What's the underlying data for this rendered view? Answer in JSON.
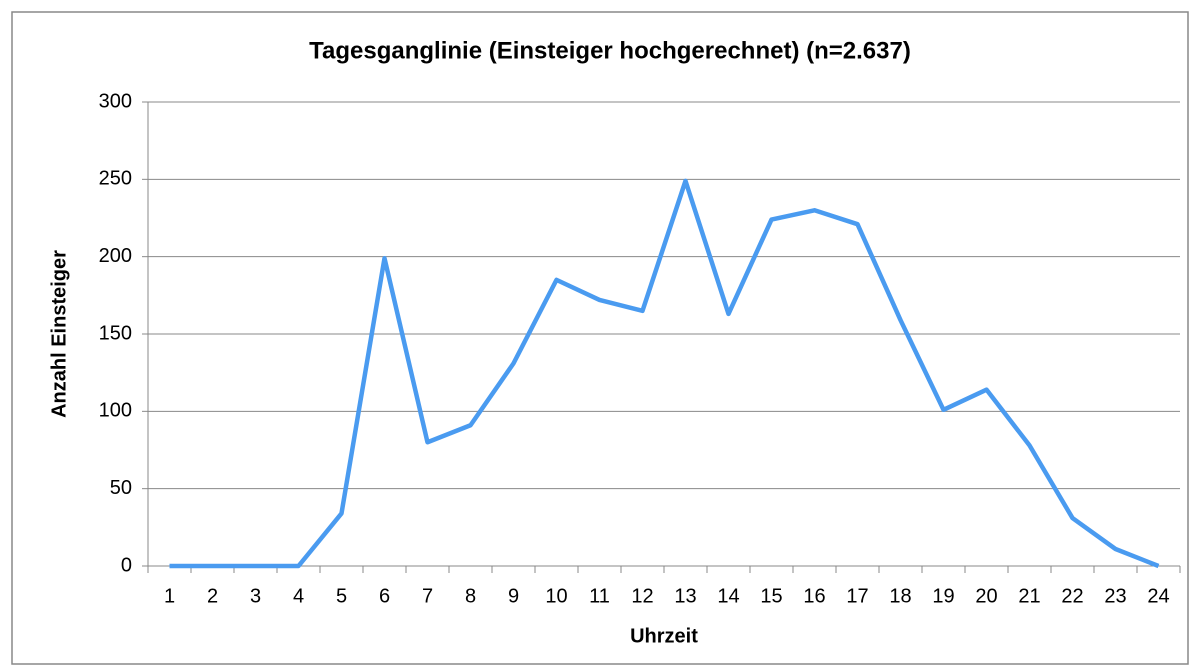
{
  "chart_data": {
    "type": "line",
    "title": "Tagesganglinie (Einsteiger hochgerechnet) (n=2.637)",
    "x_label": "Uhrzeit",
    "y_label": "Anzahl Einsteiger",
    "categories": [
      "1",
      "2",
      "3",
      "4",
      "5",
      "6",
      "7",
      "8",
      "9",
      "10",
      "11",
      "12",
      "13",
      "14",
      "15",
      "16",
      "17",
      "18",
      "19",
      "20",
      "21",
      "22",
      "23",
      "24"
    ],
    "series": [
      {
        "name": "Einsteiger",
        "color": "#4a9bf0",
        "values": [
          0,
          0,
          0,
          0,
          34,
          199,
          80,
          91,
          131,
          185,
          172,
          165,
          249,
          163,
          224,
          230,
          221,
          159,
          101,
          114,
          78,
          31,
          11,
          0
        ]
      }
    ],
    "ylim": [
      0,
      300
    ],
    "yticks": [
      0,
      50,
      100,
      150,
      200,
      250,
      300
    ],
    "grid": true
  }
}
